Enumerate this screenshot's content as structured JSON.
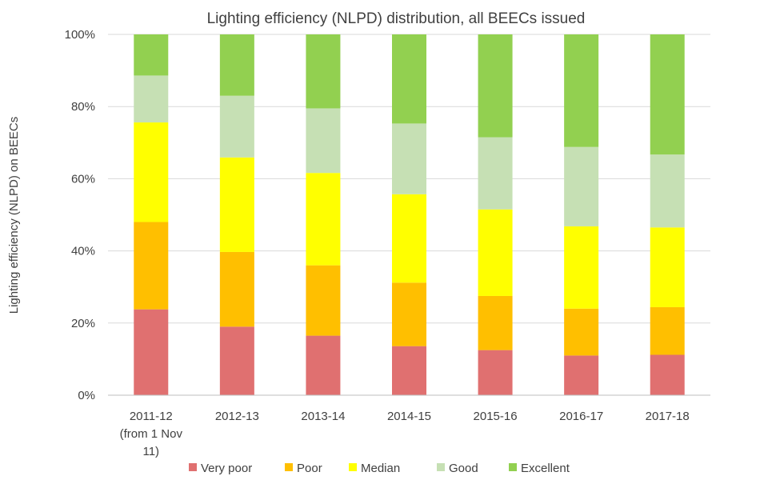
{
  "chart_data": {
    "type": "bar",
    "stacked": true,
    "percent": true,
    "title": "Lighting efficiency (NLPD) distribution, all BEECs issued",
    "xlabel": "",
    "ylabel": "Lighting efficiency (NLPD) on BEECs",
    "ylim": [
      0,
      100
    ],
    "yticks": [
      "0%",
      "20%",
      "40%",
      "60%",
      "80%",
      "100%"
    ],
    "grid": true,
    "legend_position": "bottom",
    "categories": [
      [
        "2011-12",
        "(from 1 Nov",
        "11)"
      ],
      [
        "2012-13"
      ],
      [
        "2013-14"
      ],
      [
        "2014-15"
      ],
      [
        "2015-16"
      ],
      [
        "2016-17"
      ],
      [
        "2017-18"
      ]
    ],
    "series": [
      {
        "name": "Very poor",
        "color": "#e07070",
        "values": [
          23.8,
          19.0,
          16.5,
          13.6,
          12.5,
          11.0,
          11.2
        ]
      },
      {
        "name": "Poor",
        "color": "#ffbf00",
        "values": [
          24.2,
          20.7,
          19.5,
          17.6,
          15.0,
          13.0,
          13.2
        ]
      },
      {
        "name": "Median",
        "color": "#ffff00",
        "values": [
          27.6,
          26.2,
          25.6,
          24.5,
          24.0,
          22.8,
          22.1
        ]
      },
      {
        "name": "Good",
        "color": "#c6e0b4",
        "values": [
          13.0,
          17.1,
          17.9,
          19.6,
          20.0,
          22.0,
          20.2
        ]
      },
      {
        "name": "Excellent",
        "color": "#92d050",
        "values": [
          11.4,
          17.0,
          20.5,
          24.7,
          28.5,
          31.2,
          33.3
        ]
      }
    ]
  }
}
